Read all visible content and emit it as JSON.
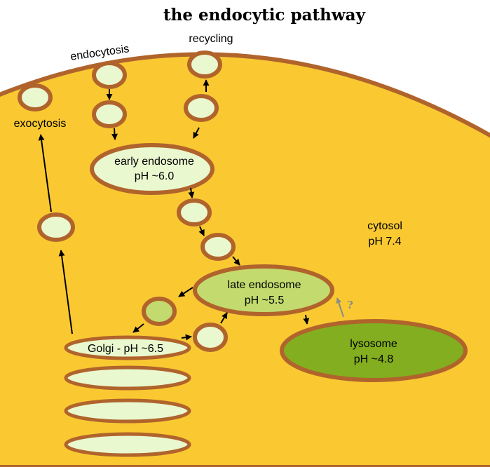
{
  "title": "the endocytic pathway",
  "labels": {
    "endocytosis": "endocytosis",
    "recycling": "recycling",
    "exocytosis": "exocytosis",
    "early_endosome_name": "early endosome",
    "early_endosome_ph": "pH ~6.0",
    "late_endosome_name": "late endosome",
    "late_endosome_ph": "pH ~5.5",
    "lysosome_name": "lysosome",
    "lysosome_ph": "pH ~4.8",
    "golgi": "Golgi - pH ~6.5",
    "cytosol_name": "cytosol",
    "cytosol_ph": "pH 7.4",
    "question_mark": "?"
  },
  "colors": {
    "cytosol": "#FAC932",
    "membrane": "#B0642C",
    "vesicle_light": "#E9F8CF",
    "late_endosome": "#C3DA6E",
    "lysosome": "#82AE1F",
    "uncertain_arrow": "#8A8A8A"
  }
}
